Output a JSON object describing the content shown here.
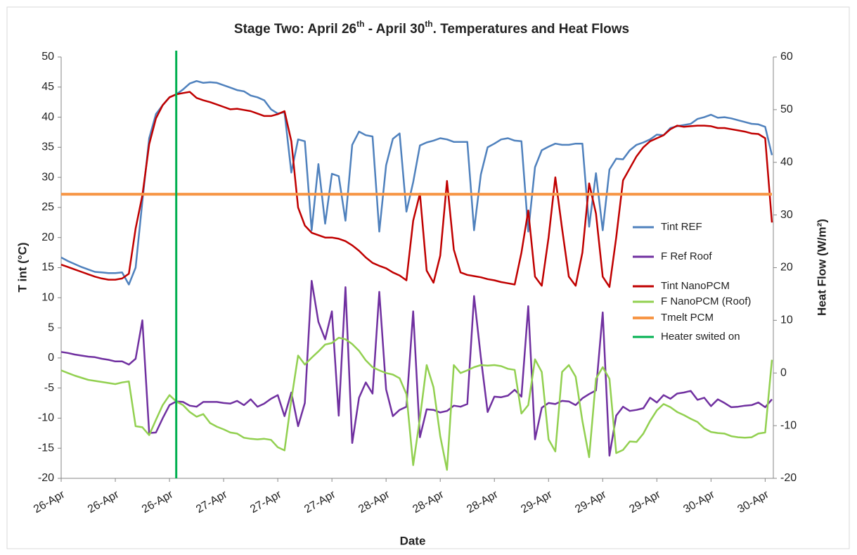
{
  "chart_data": {
    "type": "line",
    "title": [
      "Stage Two: April 26",
      "th",
      " -  April 30",
      "th",
      ". Temperatures and Heat Flows"
    ],
    "x_label": "Date",
    "y_label": "T int (°C)",
    "y2_label": "Heat Flow (W/m²)",
    "categories": [
      "26-Apr",
      null,
      null,
      null,
      null,
      null,
      null,
      null,
      "26-Apr",
      null,
      null,
      null,
      null,
      null,
      null,
      null,
      "26-Apr",
      null,
      null,
      null,
      null,
      null,
      null,
      null,
      "27-Apr",
      null,
      null,
      null,
      null,
      null,
      null,
      null,
      "27-Apr",
      null,
      null,
      null,
      null,
      null,
      null,
      null,
      "27-Apr",
      null,
      null,
      null,
      null,
      null,
      null,
      null,
      "28-Apr",
      null,
      null,
      null,
      null,
      null,
      null,
      null,
      "28-Apr",
      null,
      null,
      null,
      null,
      null,
      null,
      null,
      "28-Apr",
      null,
      null,
      null,
      null,
      null,
      null,
      null,
      "29-Apr",
      null,
      null,
      null,
      null,
      null,
      null,
      null,
      "29-Apr",
      null,
      null,
      null,
      null,
      null,
      null,
      null,
      "29-Apr",
      null,
      null,
      null,
      null,
      null,
      null,
      null,
      "30-Apr",
      null,
      null,
      null,
      null,
      null,
      null,
      null,
      "30-Apr",
      null
    ],
    "ylim": [
      -20,
      50
    ],
    "yticks": [
      -20,
      -15,
      -10,
      -5,
      0,
      5,
      10,
      15,
      20,
      25,
      30,
      35,
      40,
      45,
      50
    ],
    "y2lim": [
      -20,
      60
    ],
    "y2ticks": [
      -20,
      -10,
      0,
      10,
      20,
      30,
      40,
      50,
      60
    ],
    "grid": false,
    "series": [
      {
        "name": "Tint REF",
        "color": "#4f81bd",
        "values": [
          16.7,
          16.1,
          15.6,
          15.1,
          14.7,
          14.3,
          14.2,
          14.1,
          14.1,
          14.2,
          12.2,
          15,
          26,
          36.5,
          40.5,
          42,
          43.3,
          43.8,
          44.6,
          45.6,
          46,
          45.7,
          45.8,
          45.7,
          45.3,
          44.9,
          44.5,
          44.3,
          43.6,
          43.3,
          42.8,
          41.3,
          40.6,
          40.8,
          30.8,
          36.3,
          36,
          21.2,
          32.2,
          22.3,
          30.6,
          30.2,
          22.8,
          35.4,
          37.6,
          37,
          36.8,
          21,
          32,
          36.4,
          37.3,
          24.3,
          29.2,
          35.3,
          35.8,
          36.1,
          36.5,
          36.3,
          35.9,
          35.9,
          35.9,
          21.2,
          30.5,
          35,
          35.6,
          36.3,
          36.5,
          36.1,
          36,
          21,
          31.7,
          34.5,
          35.1,
          35.6,
          35.4,
          35.4,
          35.6,
          35.6,
          21.8,
          30.7,
          21.2,
          31.3,
          33.1,
          33,
          34.5,
          35.4,
          35.8,
          36.3,
          37.1,
          37,
          38.2,
          38.5,
          38.7,
          38.9,
          39.7,
          40,
          40.4,
          39.9,
          40,
          39.8,
          39.5,
          39.2,
          38.9,
          38.8,
          38.4,
          33.7
        ]
      },
      {
        "name": "F Ref Roof",
        "color": "#7030a0",
        "axis": "y2",
        "values": [
          4.0,
          3.8,
          3.5,
          3.3,
          3.1,
          3.0,
          2.7,
          2.5,
          2.2,
          2.2,
          1.6,
          2.7,
          10.0,
          -11.4,
          -11.3,
          -8.6,
          -6.1,
          -5.4,
          -5.5,
          -6.2,
          -6.4,
          -5.5,
          -5.5,
          -5.5,
          -5.7,
          -5.8,
          -5.3,
          -6.1,
          -5.0,
          -6.4,
          -5.8,
          -4.9,
          -4.2,
          -8.2,
          -3.7,
          -10.1,
          -5.7,
          17.5,
          9.7,
          6.4,
          11.7,
          -8.1,
          16.3,
          -13.3,
          -4.7,
          -1.8,
          -3.9,
          15.4,
          -3.1,
          -8.2,
          -7.0,
          -6.4,
          11.7,
          -12.2,
          -6.9,
          -7.0,
          -7.5,
          -7.2,
          -6.2,
          -6.4,
          -5.9,
          14.6,
          2.9,
          -7.4,
          -4.5,
          -4.6,
          -4.3,
          -3.2,
          -4.5,
          12.7,
          -12.6,
          -6.6,
          -5.7,
          -5.9,
          -5.3,
          -5.4,
          -6.1,
          -4.8,
          -4.0,
          -3.3,
          11.5,
          -15.7,
          -8.1,
          -6.4,
          -7.2,
          -7.0,
          -6.7,
          -4.7,
          -5.6,
          -4.2,
          -4.9,
          -3.9,
          -3.7,
          -3.4,
          -5.1,
          -4.7,
          -6.3,
          -5.0,
          -5.7,
          -6.5,
          -6.4,
          -6.2,
          -6.1,
          -5.6,
          -6.5,
          -5.0
        ]
      },
      {
        "name": "Tint NanoPCM",
        "color": "#c00000",
        "values": [
          15.5,
          15.1,
          14.7,
          14.3,
          13.9,
          13.5,
          13.2,
          13.0,
          13.0,
          13.2,
          14,
          21.5,
          27,
          35.5,
          39.8,
          42,
          43.3,
          43.8,
          44,
          44.2,
          43.2,
          42.8,
          42.5,
          42.1,
          41.7,
          41.3,
          41.4,
          41.2,
          41,
          40.6,
          40.2,
          40.2,
          40.5,
          41,
          36,
          25,
          22,
          20.8,
          20.4,
          20,
          20,
          19.8,
          19.4,
          18.7,
          17.8,
          16.7,
          15.8,
          15.3,
          14.9,
          14.2,
          13.7,
          12.9,
          22.8,
          27.3,
          14.5,
          12.5,
          17,
          29.4,
          18,
          14.2,
          13.8,
          13.6,
          13.4,
          13.1,
          12.9,
          12.6,
          12.4,
          12.2,
          17.5,
          24.5,
          13.5,
          12,
          20,
          30,
          21.5,
          13.5,
          12,
          17.5,
          29,
          24,
          13.5,
          11.8,
          20,
          29.5,
          31.5,
          33.5,
          35,
          36,
          36.5,
          37,
          38,
          38.6,
          38.4,
          38.5,
          38.6,
          38.6,
          38.5,
          38.2,
          38.2,
          38,
          37.8,
          37.6,
          37.3,
          37.2,
          36.5,
          22.5
        ]
      },
      {
        "name": "F NanoPCM (Roof)",
        "color": "#92d050",
        "axis": "y2",
        "values": [
          0.5,
          0,
          -0.5,
          -0.9,
          -1.3,
          -1.5,
          -1.7,
          -1.9,
          -2.1,
          -1.8,
          -1.6,
          -10.1,
          -10.3,
          -11.8,
          -8.9,
          -6.1,
          -4.2,
          -5.4,
          -6.1,
          -7.4,
          -8.3,
          -7.8,
          -9.5,
          -10.2,
          -10.7,
          -11.3,
          -11.5,
          -12.3,
          -12.5,
          -12.6,
          -12.5,
          -12.7,
          -14.1,
          -14.7,
          -5.1,
          3.3,
          1.6,
          2.9,
          4.1,
          5.4,
          5.7,
          6.7,
          6.4,
          5.5,
          4.2,
          2.4,
          1.1,
          0.5,
          0,
          -0.3,
          -1.0,
          -4.0,
          -17.5,
          -8.6,
          1.5,
          -2.7,
          -12.0,
          -18.4,
          1.5,
          0,
          0.5,
          1.1,
          1.5,
          1.4,
          1.5,
          1.3,
          0.8,
          0.6,
          -7.7,
          -6.1,
          2.6,
          0.2,
          -12.6,
          -14.9,
          0.2,
          1.5,
          -0.7,
          -9.1,
          -16.0,
          -1.1,
          1.1,
          -1.1,
          -15.2,
          -14.6,
          -13.0,
          -13.1,
          -11.5,
          -9.1,
          -7.1,
          -5.9,
          -6.5,
          -7.4,
          -8.0,
          -8.7,
          -9.3,
          -10.5,
          -11.2,
          -11.4,
          -11.5,
          -12.0,
          -12.2,
          -12.3,
          -12.2,
          -11.5,
          -11.3,
          2.5
        ]
      },
      {
        "name": "Tmelt PCM",
        "color": "#f79646",
        "width": 4,
        "values": [
          27.2,
          27.2,
          27.2,
          27.2,
          27.2,
          27.2,
          27.2,
          27.2,
          27.2,
          27.2,
          27.2,
          27.2,
          27.2,
          27.2,
          27.2,
          27.2,
          27.2,
          27.2,
          27.2,
          27.2,
          27.2,
          27.2,
          27.2,
          27.2,
          27.2,
          27.2,
          27.2,
          27.2,
          27.2,
          27.2,
          27.2,
          27.2,
          27.2,
          27.2,
          27.2,
          27.2,
          27.2,
          27.2,
          27.2,
          27.2,
          27.2,
          27.2,
          27.2,
          27.2,
          27.2,
          27.2,
          27.2,
          27.2,
          27.2,
          27.2,
          27.2,
          27.2,
          27.2,
          27.2,
          27.2,
          27.2,
          27.2,
          27.2,
          27.2,
          27.2,
          27.2,
          27.2,
          27.2,
          27.2,
          27.2,
          27.2,
          27.2,
          27.2,
          27.2,
          27.2,
          27.2,
          27.2,
          27.2,
          27.2,
          27.2,
          27.2,
          27.2,
          27.2,
          27.2,
          27.2,
          27.2,
          27.2,
          27.2,
          27.2,
          27.2,
          27.2,
          27.2,
          27.2,
          27.2,
          27.2,
          27.2,
          27.2,
          27.2,
          27.2,
          27.2,
          27.2,
          27.2,
          27.2,
          27.2,
          27.2,
          27.2,
          27.2,
          27.2,
          27.2,
          27.2,
          27.2
        ]
      },
      {
        "name": "Heater swited on",
        "color": "#00b050",
        "type": "vline",
        "position": 17
      }
    ]
  }
}
